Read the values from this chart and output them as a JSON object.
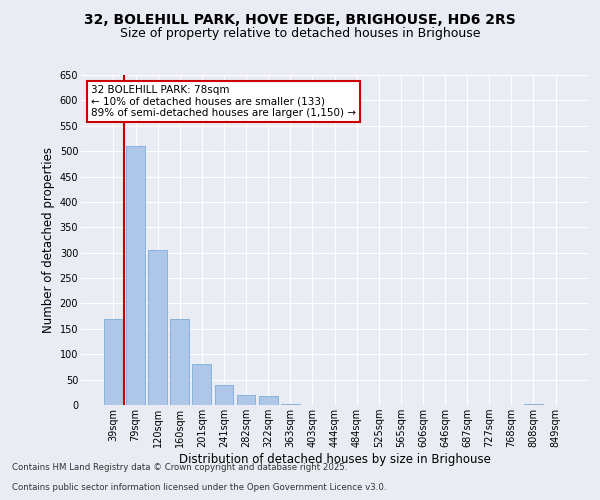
{
  "title_line1": "32, BOLEHILL PARK, HOVE EDGE, BRIGHOUSE, HD6 2RS",
  "title_line2": "Size of property relative to detached houses in Brighouse",
  "xlabel": "Distribution of detached houses by size in Brighouse",
  "ylabel": "Number of detached properties",
  "categories": [
    "39sqm",
    "79sqm",
    "120sqm",
    "160sqm",
    "201sqm",
    "241sqm",
    "282sqm",
    "322sqm",
    "363sqm",
    "403sqm",
    "444sqm",
    "484sqm",
    "525sqm",
    "565sqm",
    "606sqm",
    "646sqm",
    "687sqm",
    "727sqm",
    "768sqm",
    "808sqm",
    "849sqm"
  ],
  "values": [
    170,
    510,
    305,
    170,
    80,
    40,
    20,
    18,
    2,
    0,
    0,
    0,
    0,
    0,
    0,
    0,
    0,
    0,
    0,
    2,
    0
  ],
  "bar_color": "#aec6e8",
  "bar_edge_color": "#7aadd4",
  "annotation_box_color": "#cc0000",
  "annotation_line1": "32 BOLEHILL PARK: 78sqm",
  "annotation_line2": "← 10% of detached houses are smaller (133)",
  "annotation_line3": "89% of semi-detached houses are larger (1,150) →",
  "marker_line_color": "#cc0000",
  "ylim": [
    0,
    650
  ],
  "yticks": [
    0,
    50,
    100,
    150,
    200,
    250,
    300,
    350,
    400,
    450,
    500,
    550,
    600,
    650
  ],
  "background_color": "#eaecf4",
  "plot_bg_color": "#eaecf4",
  "footer_line1": "Contains HM Land Registry data © Crown copyright and database right 2025.",
  "footer_line2": "Contains public sector information licensed under the Open Government Licence v3.0.",
  "title_fontsize": 10,
  "subtitle_fontsize": 9,
  "tick_fontsize": 7,
  "label_fontsize": 8.5
}
